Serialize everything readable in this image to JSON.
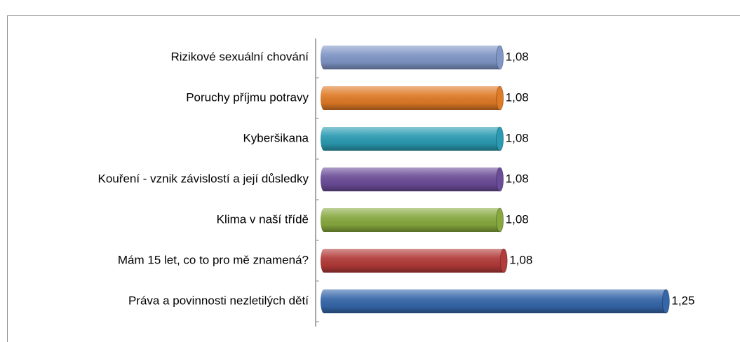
{
  "chart_data": {
    "type": "bar",
    "orientation": "horizontal",
    "categories": [
      "Rizikové sexuální chování",
      "Poruchy příjmu potravy",
      "Kyberšikana",
      "Kouření - vznik závislostí a její důsledky",
      "Klima v naší třídě",
      "Mám 15 let, co to pro mě znamená?",
      "Práva a povinnosti nezletilých dětí"
    ],
    "values": [
      1.08,
      1.08,
      1.08,
      1.08,
      1.08,
      1.084,
      1.25
    ],
    "value_labels": [
      "1,08",
      "1,08",
      "1,08",
      "1,08",
      "1,08",
      "1,08",
      "1,25"
    ],
    "colors": [
      "#7f96c6",
      "#df7a26",
      "#2a9bb2",
      "#6b4c98",
      "#86a83e",
      "#b23a38",
      "#3566a9"
    ],
    "xlim": [
      0.9,
      1.3
    ]
  }
}
